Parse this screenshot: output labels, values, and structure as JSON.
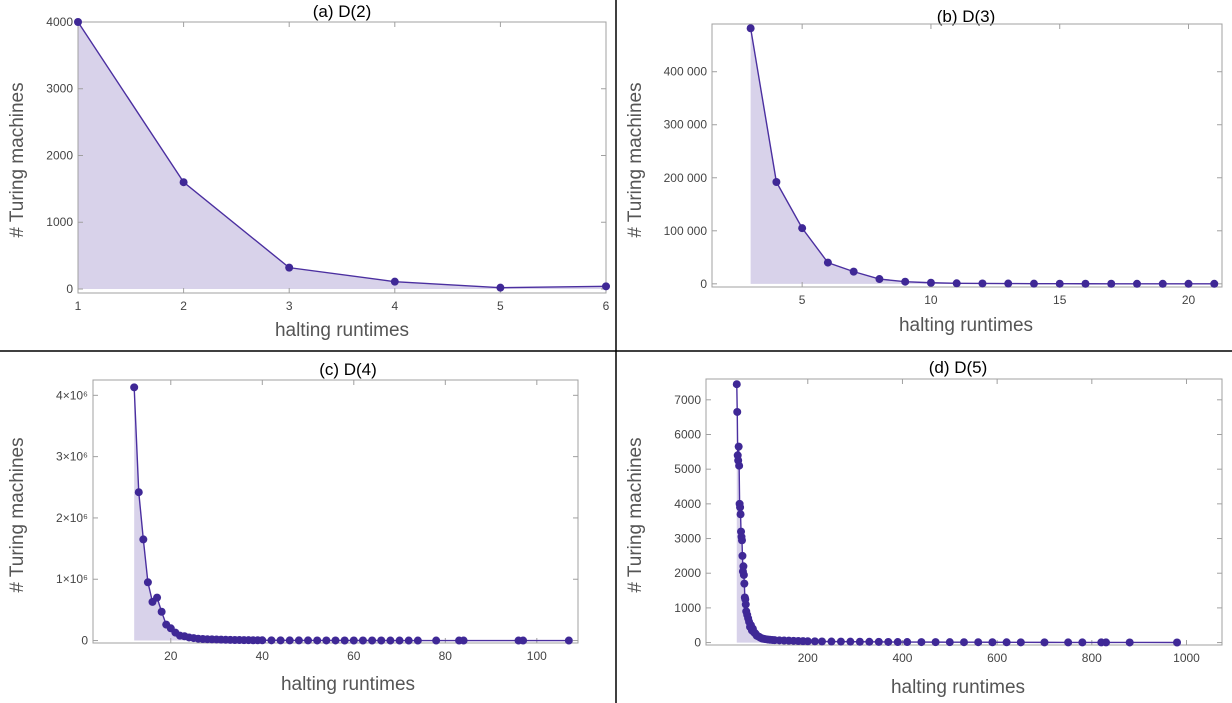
{
  "colors": {
    "line": "#4b2fa0",
    "point": "#3f2896",
    "fill": "#d8d2ea",
    "frame": "#a0a0a0",
    "divider": "#000000"
  },
  "chart_data": [
    {
      "type": "area",
      "title": "(a) D(2)",
      "xlabel": "halting runtimes",
      "ylabel": "# Turing machines",
      "xlim": [
        1,
        6
      ],
      "ylim": [
        -60,
        4000
      ],
      "x_ticks": [
        {
          "v": 1,
          "label": "1"
        },
        {
          "v": 2,
          "label": "2"
        },
        {
          "v": 3,
          "label": "3"
        },
        {
          "v": 4,
          "label": "4"
        },
        {
          "v": 5,
          "label": "5"
        },
        {
          "v": 6,
          "label": "6"
        }
      ],
      "y_ticks": [
        {
          "v": 0,
          "label": "0"
        },
        {
          "v": 1000,
          "label": "1000"
        },
        {
          "v": 2000,
          "label": "2000"
        },
        {
          "v": 3000,
          "label": "3000"
        },
        {
          "v": 4000,
          "label": "4000"
        }
      ],
      "series": [
        {
          "x": [
            1,
            2,
            3,
            4,
            5,
            6
          ],
          "y": [
            4000,
            1600,
            320,
            110,
            20,
            40
          ]
        }
      ]
    },
    {
      "type": "area",
      "title": "(b) D(3)",
      "xlabel": "halting runtimes",
      "ylabel": "# Turing machines",
      "xlim": [
        1.5,
        21.3
      ],
      "ylim": [
        -6000,
        490000
      ],
      "x_ticks": [
        {
          "v": 5,
          "label": "5"
        },
        {
          "v": 10,
          "label": "10"
        },
        {
          "v": 15,
          "label": "15"
        },
        {
          "v": 20,
          "label": "20"
        }
      ],
      "y_ticks": [
        {
          "v": 0,
          "label": "0"
        },
        {
          "v": 100000,
          "label": "100 000"
        },
        {
          "v": 200000,
          "label": "200 000"
        },
        {
          "v": 300000,
          "label": "300 000"
        },
        {
          "v": 400000,
          "label": "400 000"
        }
      ],
      "series": [
        {
          "x": [
            3,
            4,
            5,
            6,
            7,
            8,
            9,
            10,
            11,
            12,
            13,
            14,
            15,
            16,
            17,
            18,
            19,
            20,
            21
          ],
          "y": [
            482000,
            192000,
            105000,
            40000,
            23000,
            9000,
            4000,
            2000,
            1000,
            700,
            500,
            300,
            200,
            150,
            100,
            80,
            60,
            40,
            30
          ]
        }
      ]
    },
    {
      "type": "area",
      "title": "(c) D(4)",
      "xlabel": "halting runtimes",
      "ylabel": "# Turing machines",
      "xlim": [
        3,
        109
      ],
      "ylim": [
        -40000,
        4250000
      ],
      "x_ticks": [
        {
          "v": 20,
          "label": "20"
        },
        {
          "v": 40,
          "label": "40"
        },
        {
          "v": 60,
          "label": "60"
        },
        {
          "v": 80,
          "label": "80"
        },
        {
          "v": 100,
          "label": "100"
        }
      ],
      "y_ticks": [
        {
          "v": 0,
          "label": "0"
        },
        {
          "v": 1000000,
          "label": "1×10⁶"
        },
        {
          "v": 2000000,
          "label": "2×10⁶"
        },
        {
          "v": 3000000,
          "label": "3×10⁶"
        },
        {
          "v": 4000000,
          "label": "4×10⁶"
        }
      ],
      "series": [
        {
          "x": [
            12,
            13,
            14,
            15,
            16,
            17,
            18,
            19,
            20,
            21,
            22,
            23,
            24,
            25,
            26,
            27,
            28,
            29,
            30,
            31,
            32,
            33,
            34,
            35,
            36,
            37,
            38,
            39,
            40,
            42,
            44,
            46,
            48,
            50,
            52,
            54,
            56,
            58,
            60,
            62,
            64,
            66,
            68,
            70,
            72,
            74,
            78,
            83,
            84,
            96,
            97,
            107
          ],
          "y": [
            4130000,
            2420000,
            1650000,
            950000,
            630000,
            700000,
            470000,
            260000,
            200000,
            130000,
            80000,
            70000,
            50000,
            40000,
            30000,
            25000,
            22000,
            20000,
            18000,
            15000,
            12000,
            10000,
            9000,
            8000,
            7000,
            6000,
            5000,
            4500,
            4000,
            3500,
            3000,
            2500,
            2000,
            1800,
            1600,
            1400,
            1200,
            1000,
            900,
            800,
            700,
            600,
            500,
            450,
            400,
            350,
            300,
            250,
            200,
            150,
            120,
            100
          ]
        }
      ]
    },
    {
      "type": "area",
      "title": "(d) D(5)",
      "xlabel": "halting runtimes",
      "ylabel": "# Turing machines",
      "xlim": [
        -15,
        1075
      ],
      "ylim": [
        -70,
        7600
      ],
      "x_ticks": [
        {
          "v": 200,
          "label": "200"
        },
        {
          "v": 400,
          "label": "400"
        },
        {
          "v": 600,
          "label": "600"
        },
        {
          "v": 800,
          "label": "800"
        },
        {
          "v": 1000,
          "label": "1000"
        }
      ],
      "y_ticks": [
        {
          "v": 0,
          "label": "0"
        },
        {
          "v": 1000,
          "label": "1000"
        },
        {
          "v": 2000,
          "label": "2000"
        },
        {
          "v": 3000,
          "label": "3000"
        },
        {
          "v": 4000,
          "label": "4000"
        },
        {
          "v": 5000,
          "label": "5000"
        },
        {
          "v": 6000,
          "label": "6000"
        },
        {
          "v": 7000,
          "label": "7000"
        }
      ],
      "series": [
        {
          "x": [
            50,
            51,
            52,
            53,
            54,
            55,
            56,
            57,
            58,
            59,
            60,
            61,
            62,
            63,
            64,
            65,
            66,
            67,
            68,
            69,
            70,
            72,
            74,
            76,
            78,
            80,
            82,
            84,
            86,
            88,
            90,
            92,
            95,
            98,
            100,
            103,
            106,
            110,
            115,
            120,
            125,
            130,
            140,
            150,
            160,
            170,
            180,
            190,
            200,
            215,
            230,
            250,
            270,
            290,
            310,
            330,
            350,
            370,
            390,
            410,
            440,
            470,
            500,
            530,
            560,
            590,
            620,
            650,
            700,
            750,
            780,
            820,
            830,
            880,
            980
          ],
          "y": [
            7450,
            6650,
            5400,
            5250,
            5650,
            5100,
            4000,
            3900,
            3700,
            3200,
            3050,
            2950,
            2500,
            2050,
            2200,
            1950,
            1700,
            1300,
            1250,
            1100,
            900,
            800,
            700,
            600,
            450,
            500,
            350,
            400,
            300,
            280,
            250,
            200,
            180,
            160,
            140,
            120,
            110,
            100,
            90,
            80,
            75,
            70,
            65,
            60,
            55,
            50,
            45,
            40,
            38,
            35,
            32,
            30,
            28,
            26,
            24,
            22,
            20,
            18,
            16,
            15,
            14,
            13,
            12,
            11,
            10,
            9,
            8,
            7,
            6,
            5,
            5,
            4,
            4,
            3,
            2
          ]
        }
      ]
    }
  ]
}
